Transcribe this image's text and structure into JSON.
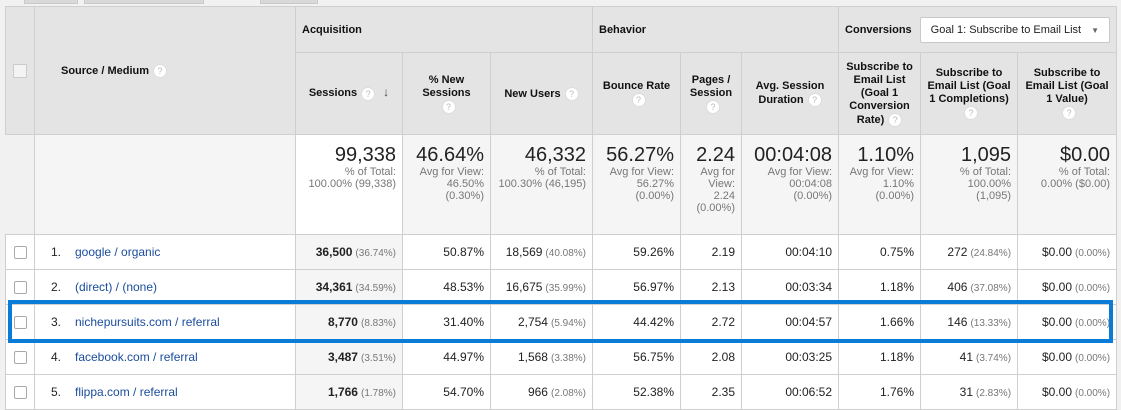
{
  "header": {
    "source_medium": "Source / Medium",
    "groups": {
      "acquisition": "Acquisition",
      "behavior": "Behavior",
      "conversions": "Conversions"
    },
    "goal_select": "Goal 1: Subscribe to Email List",
    "columns": [
      "Sessions",
      "% New Sessions",
      "New Users",
      "Bounce Rate",
      "Pages / Session",
      "Avg. Session Duration",
      "Subscribe to Email List (Goal 1 Conversion Rate)",
      "Subscribe to Email List (Goal 1 Completions)",
      "Subscribe to Email List (Goal 1 Value)"
    ]
  },
  "totals": [
    {
      "value": "99,338",
      "l1": "% of Total:",
      "l2": "100.00% (99,338)"
    },
    {
      "value": "46.64%",
      "l1": "Avg for View:",
      "l2": "46.50%",
      "l3": "(0.30%)"
    },
    {
      "value": "46,332",
      "l1": "% of Total:",
      "l2": "100.30% (46,195)"
    },
    {
      "value": "56.27%",
      "l1": "Avg for View:",
      "l2": "56.27%",
      "l3": "(0.00%)"
    },
    {
      "value": "2.24",
      "l1": "Avg for",
      "l2": "View:",
      "l3": "2.24",
      "l4": "(0.00%)"
    },
    {
      "value": "00:04:08",
      "l1": "Avg for View:",
      "l2": "00:04:08",
      "l3": "(0.00%)"
    },
    {
      "value": "1.10%",
      "l1": "Avg for View:",
      "l2": "1.10%",
      "l3": "(0.00%)"
    },
    {
      "value": "1,095",
      "l1": "% of Total:",
      "l2": "100.00%",
      "l3": "(1,095)"
    },
    {
      "value": "$0.00",
      "l1": "% of Total:",
      "l2": "0.00% ($0.00)"
    }
  ],
  "rows": [
    {
      "n": "1.",
      "source": "google / organic",
      "sessions": "36,500",
      "sessions_pct": "(36.74%)",
      "new_sessions": "50.87%",
      "new_users": "18,569",
      "new_users_pct": "(40.08%)",
      "bounce": "59.26%",
      "pages": "2.19",
      "duration": "00:04:10",
      "conv_rate": "0.75%",
      "completions": "272",
      "completions_pct": "(24.84%)",
      "value": "$0.00",
      "value_pct": "(0.00%)"
    },
    {
      "n": "2.",
      "source": "(direct) / (none)",
      "sessions": "34,361",
      "sessions_pct": "(34.59%)",
      "new_sessions": "48.53%",
      "new_users": "16,675",
      "new_users_pct": "(35.99%)",
      "bounce": "56.97%",
      "pages": "2.13",
      "duration": "00:03:34",
      "conv_rate": "1.18%",
      "completions": "406",
      "completions_pct": "(37.08%)",
      "value": "$0.00",
      "value_pct": "(0.00%)"
    },
    {
      "n": "3.",
      "source": "nichepursuits.com / referral",
      "sessions": "8,770",
      "sessions_pct": "(8.83%)",
      "new_sessions": "31.40%",
      "new_users": "2,754",
      "new_users_pct": "(5.94%)",
      "bounce": "44.42%",
      "pages": "2.72",
      "duration": "00:04:57",
      "conv_rate": "1.66%",
      "completions": "146",
      "completions_pct": "(13.33%)",
      "value": "$0.00",
      "value_pct": "(0.00%)"
    },
    {
      "n": "4.",
      "source": "facebook.com / referral",
      "sessions": "3,487",
      "sessions_pct": "(3.51%)",
      "new_sessions": "44.97%",
      "new_users": "1,568",
      "new_users_pct": "(3.38%)",
      "bounce": "56.75%",
      "pages": "2.08",
      "duration": "00:03:25",
      "conv_rate": "1.18%",
      "completions": "41",
      "completions_pct": "(3.74%)",
      "value": "$0.00",
      "value_pct": "(0.00%)"
    },
    {
      "n": "5.",
      "source": "flippa.com / referral",
      "sessions": "1,766",
      "sessions_pct": "(1.78%)",
      "new_sessions": "54.70%",
      "new_users": "966",
      "new_users_pct": "(2.08%)",
      "bounce": "52.38%",
      "pages": "2.35",
      "duration": "00:06:52",
      "conv_rate": "1.76%",
      "completions": "31",
      "completions_pct": "(2.83%)",
      "value": "$0.00",
      "value_pct": "(0.00%)"
    }
  ],
  "highlight_color": "#0a7bd6",
  "help_icon": "?",
  "sort_icon": "↓"
}
